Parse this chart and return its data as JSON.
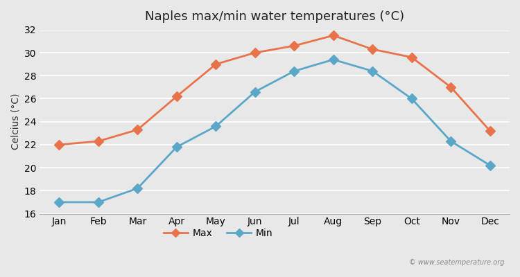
{
  "title": "Naples max/min water temperatures (°C)",
  "xlabel": "",
  "ylabel": "Celcius (°C)",
  "months": [
    "Jan",
    "Feb",
    "Mar",
    "Apr",
    "May",
    "Jun",
    "Jul",
    "Aug",
    "Sep",
    "Oct",
    "Nov",
    "Dec"
  ],
  "max_temps": [
    22.0,
    22.3,
    23.3,
    26.2,
    29.0,
    30.0,
    30.6,
    31.5,
    30.3,
    29.6,
    27.0,
    23.2
  ],
  "min_temps": [
    17.0,
    17.0,
    18.2,
    21.8,
    23.6,
    26.6,
    28.4,
    29.4,
    28.4,
    26.0,
    22.3,
    20.2
  ],
  "max_color": "#e8734a",
  "min_color": "#5aa7c8",
  "bg_color": "#e8e8e8",
  "plot_bg_color": "#e8e8e8",
  "ylim": [
    16,
    32
  ],
  "yticks": [
    16,
    18,
    20,
    22,
    24,
    26,
    28,
    30,
    32
  ],
  "grid_color": "#ffffff",
  "watermark": "© www.seatemperature.org",
  "marker": "D",
  "markersize": 7,
  "linewidth": 2.0
}
